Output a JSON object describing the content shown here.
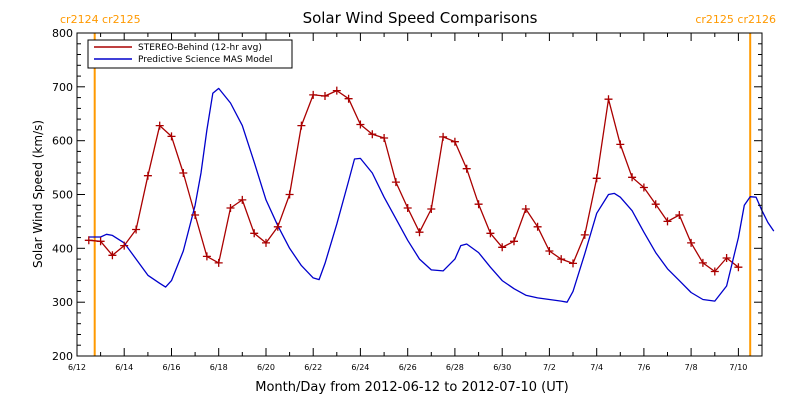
{
  "chart_data": {
    "type": "line",
    "title": "Solar Wind Speed Comparisons",
    "xlabel": "Month/Day from 2012-06-12 to 2012-07-10 (UT)",
    "ylabel": "Solar Wind Speed (km/s)",
    "xlim": [
      "2012-06-12",
      "2012-07-11"
    ],
    "ylim": [
      200,
      800
    ],
    "x_ticks": [
      {
        "date": "2012-06-12",
        "label": "6/12"
      },
      {
        "date": "2012-06-14",
        "label": "6/14"
      },
      {
        "date": "2012-06-16",
        "label": "6/16"
      },
      {
        "date": "2012-06-18",
        "label": "6/18"
      },
      {
        "date": "2012-06-20",
        "label": "6/20"
      },
      {
        "date": "2012-06-22",
        "label": "6/22"
      },
      {
        "date": "2012-06-24",
        "label": "6/24"
      },
      {
        "date": "2012-06-26",
        "label": "6/26"
      },
      {
        "date": "2012-06-28",
        "label": "6/28"
      },
      {
        "date": "2012-06-30",
        "label": "6/30"
      },
      {
        "date": "2012-07-02",
        "label": "7/2"
      },
      {
        "date": "2012-07-04",
        "label": "7/4"
      },
      {
        "date": "2012-07-06",
        "label": "7/6"
      },
      {
        "date": "2012-07-08",
        "label": "7/8"
      },
      {
        "date": "2012-07-10",
        "label": "7/10"
      }
    ],
    "y_ticks": [
      200,
      300,
      400,
      500,
      600,
      700,
      800
    ],
    "legend": {
      "position": "top-left"
    },
    "series": [
      {
        "name": "STEREO-Behind (12-hr avg)",
        "color": "#aa0000",
        "marker": "plus",
        "points": [
          [
            "2012-06-12 12:00",
            415
          ],
          [
            "2012-06-13 00:00",
            413
          ],
          [
            "2012-06-13 12:00",
            387
          ],
          [
            "2012-06-14 00:00",
            405
          ],
          [
            "2012-06-14 12:00",
            435
          ],
          [
            "2012-06-15 00:00",
            535
          ],
          [
            "2012-06-15 12:00",
            628
          ],
          [
            "2012-06-16 00:00",
            608
          ],
          [
            "2012-06-16 12:00",
            540
          ],
          [
            "2012-06-17 00:00",
            462
          ],
          [
            "2012-06-17 12:00",
            385
          ],
          [
            "2012-06-18 00:00",
            373
          ],
          [
            "2012-06-18 12:00",
            475
          ],
          [
            "2012-06-19 00:00",
            490
          ],
          [
            "2012-06-19 12:00",
            428
          ],
          [
            "2012-06-20 00:00",
            410
          ],
          [
            "2012-06-20 12:00",
            440
          ],
          [
            "2012-06-21 00:00",
            500
          ],
          [
            "2012-06-21 12:00",
            628
          ],
          [
            "2012-06-22 00:00",
            685
          ],
          [
            "2012-06-22 12:00",
            683
          ],
          [
            "2012-06-23 00:00",
            693
          ],
          [
            "2012-06-23 12:00",
            678
          ],
          [
            "2012-06-24 00:00",
            630
          ],
          [
            "2012-06-24 12:00",
            612
          ],
          [
            "2012-06-25 00:00",
            605
          ],
          [
            "2012-06-25 12:00",
            523
          ],
          [
            "2012-06-26 00:00",
            475
          ],
          [
            "2012-06-26 12:00",
            430
          ],
          [
            "2012-06-27 00:00",
            473
          ],
          [
            "2012-06-27 12:00",
            607
          ],
          [
            "2012-06-28 00:00",
            598
          ],
          [
            "2012-06-28 12:00",
            548
          ],
          [
            "2012-06-29 00:00",
            482
          ],
          [
            "2012-06-29 12:00",
            428
          ],
          [
            "2012-06-30 00:00",
            402
          ],
          [
            "2012-06-30 12:00",
            413
          ],
          [
            "2012-07-01 00:00",
            473
          ],
          [
            "2012-07-01 12:00",
            440
          ],
          [
            "2012-07-02 00:00",
            395
          ],
          [
            "2012-07-02 12:00",
            380
          ],
          [
            "2012-07-03 00:00",
            372
          ],
          [
            "2012-07-03 12:00",
            425
          ],
          [
            "2012-07-04 00:00",
            530
          ],
          [
            "2012-07-04 12:00",
            677
          ],
          [
            "2012-07-05 00:00",
            593
          ],
          [
            "2012-07-05 12:00",
            532
          ],
          [
            "2012-07-06 00:00",
            513
          ],
          [
            "2012-07-06 12:00",
            482
          ],
          [
            "2012-07-07 00:00",
            450
          ],
          [
            "2012-07-07 12:00",
            462
          ],
          [
            "2012-07-08 00:00",
            410
          ],
          [
            "2012-07-08 12:00",
            373
          ],
          [
            "2012-07-09 00:00",
            357
          ],
          [
            "2012-07-09 12:00",
            382
          ],
          [
            "2012-07-10 00:00",
            365
          ]
        ]
      },
      {
        "name": "Predictive Science MAS Model",
        "color": "#0000cc",
        "marker": "none",
        "points": [
          [
            "2012-06-12 12:00",
            421
          ],
          [
            "2012-06-13 00:00",
            421
          ],
          [
            "2012-06-13 06:00",
            426
          ],
          [
            "2012-06-13 12:00",
            424
          ],
          [
            "2012-06-14 00:00",
            410
          ],
          [
            "2012-06-14 12:00",
            380
          ],
          [
            "2012-06-15 00:00",
            350
          ],
          [
            "2012-06-15 12:00",
            335
          ],
          [
            "2012-06-15 18:00",
            328
          ],
          [
            "2012-06-16 00:00",
            340
          ],
          [
            "2012-06-16 12:00",
            395
          ],
          [
            "2012-06-17 00:00",
            480
          ],
          [
            "2012-06-17 06:00",
            540
          ],
          [
            "2012-06-17 12:00",
            620
          ],
          [
            "2012-06-17 18:00",
            688
          ],
          [
            "2012-06-18 00:00",
            697
          ],
          [
            "2012-06-18 12:00",
            670
          ],
          [
            "2012-06-19 00:00",
            628
          ],
          [
            "2012-06-19 12:00",
            560
          ],
          [
            "2012-06-20 00:00",
            490
          ],
          [
            "2012-06-20 12:00",
            442
          ],
          [
            "2012-06-21 00:00",
            400
          ],
          [
            "2012-06-21 12:00",
            368
          ],
          [
            "2012-06-22 00:00",
            345
          ],
          [
            "2012-06-22 06:00",
            342
          ],
          [
            "2012-06-22 12:00",
            372
          ],
          [
            "2012-06-23 00:00",
            445
          ],
          [
            "2012-06-23 12:00",
            525
          ],
          [
            "2012-06-23 18:00",
            566
          ],
          [
            "2012-06-24 00:00",
            567
          ],
          [
            "2012-06-24 12:00",
            540
          ],
          [
            "2012-06-25 00:00",
            495
          ],
          [
            "2012-06-25 12:00",
            455
          ],
          [
            "2012-06-26 00:00",
            415
          ],
          [
            "2012-06-26 12:00",
            380
          ],
          [
            "2012-06-27 00:00",
            360
          ],
          [
            "2012-06-27 12:00",
            358
          ],
          [
            "2012-06-28 00:00",
            380
          ],
          [
            "2012-06-28 06:00",
            405
          ],
          [
            "2012-06-28 12:00",
            408
          ],
          [
            "2012-06-29 00:00",
            392
          ],
          [
            "2012-06-29 12:00",
            365
          ],
          [
            "2012-06-30 00:00",
            340
          ],
          [
            "2012-06-30 12:00",
            325
          ],
          [
            "2012-07-01 00:00",
            313
          ],
          [
            "2012-07-01 12:00",
            308
          ],
          [
            "2012-07-02 00:00",
            305
          ],
          [
            "2012-07-02 12:00",
            302
          ],
          [
            "2012-07-02 18:00",
            300
          ],
          [
            "2012-07-03 00:00",
            320
          ],
          [
            "2012-07-03 12:00",
            390
          ],
          [
            "2012-07-04 00:00",
            465
          ],
          [
            "2012-07-04 12:00",
            500
          ],
          [
            "2012-07-04 18:00",
            502
          ],
          [
            "2012-07-05 00:00",
            495
          ],
          [
            "2012-07-05 12:00",
            470
          ],
          [
            "2012-07-06 00:00",
            430
          ],
          [
            "2012-07-06 12:00",
            392
          ],
          [
            "2012-07-07 00:00",
            362
          ],
          [
            "2012-07-07 12:00",
            340
          ],
          [
            "2012-07-08 00:00",
            318
          ],
          [
            "2012-07-08 12:00",
            305
          ],
          [
            "2012-07-09 00:00",
            302
          ],
          [
            "2012-07-09 12:00",
            330
          ],
          [
            "2012-07-10 00:00",
            420
          ],
          [
            "2012-07-10 06:00",
            480
          ],
          [
            "2012-07-10 12:00",
            496
          ],
          [
            "2012-07-10 18:00",
            495
          ],
          [
            "2012-07-11 00:00",
            470
          ],
          [
            "2012-07-11 06:00",
            448
          ],
          [
            "2012-07-11 12:00",
            432
          ]
        ]
      }
    ],
    "vertical_markers": [
      {
        "date": "2012-06-12 18:00",
        "color": "#ff9900",
        "label": "cr2124 cr2125",
        "label_side": "left"
      },
      {
        "date": "2012-07-10 12:00",
        "color": "#ff9900",
        "label": "cr2125 cr2126",
        "label_side": "right"
      }
    ]
  }
}
